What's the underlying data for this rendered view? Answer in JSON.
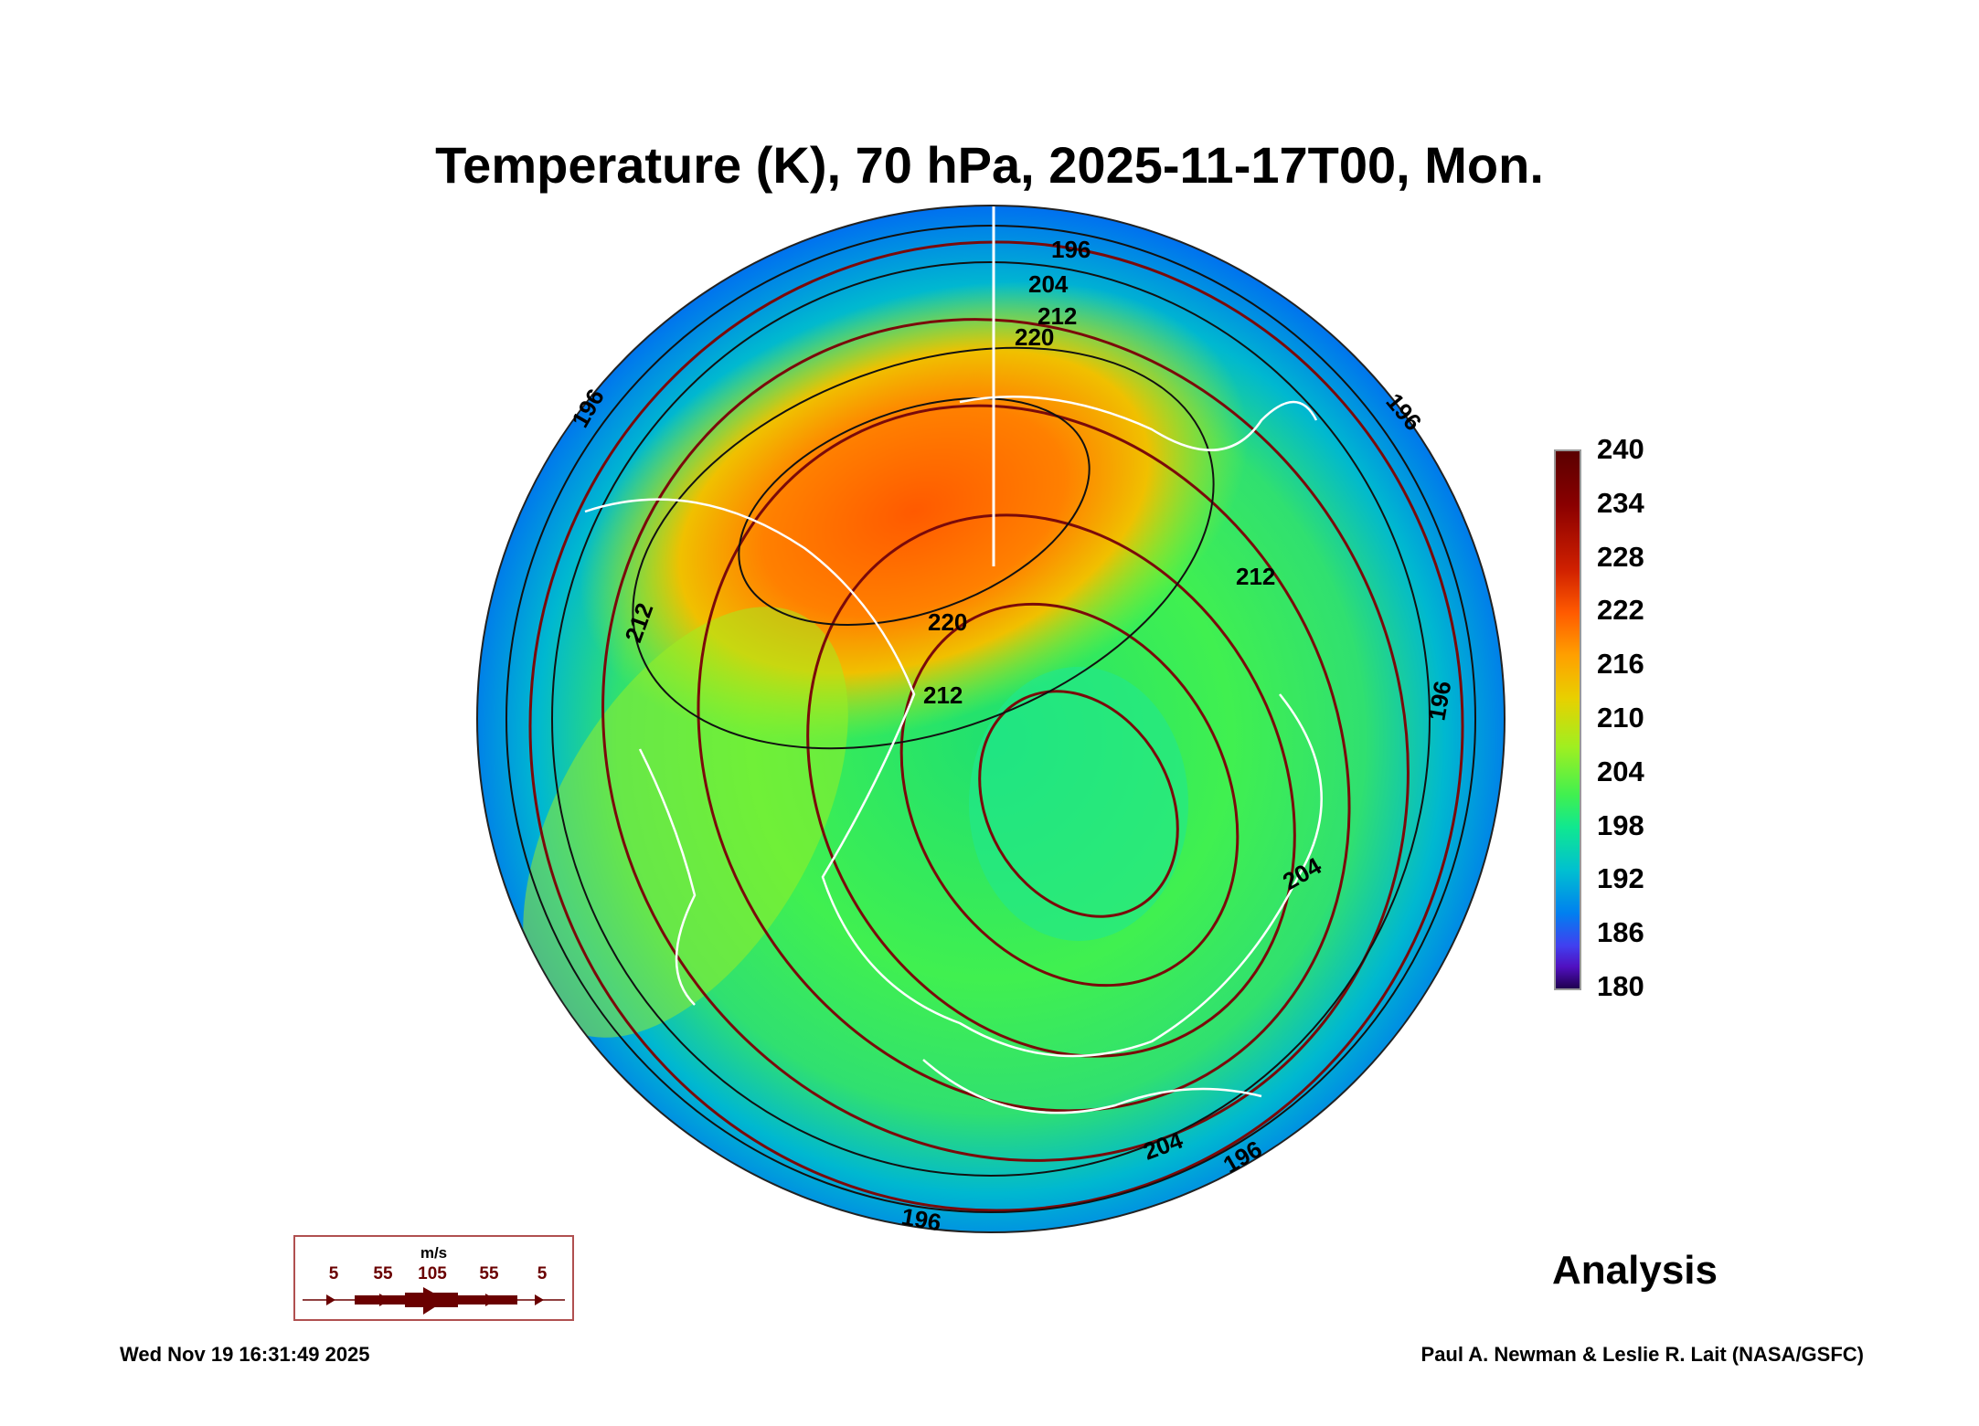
{
  "title": "Temperature (K), 70 hPa, 2025-11-17T00, Mon.",
  "colorbar": {
    "units": "K",
    "ticks": [
      "240",
      "234",
      "228",
      "222",
      "216",
      "210",
      "204",
      "198",
      "192",
      "186",
      "180"
    ]
  },
  "contour_labels": [
    "196",
    "204",
    "212",
    "220",
    "220",
    "212",
    "212",
    "212",
    "196",
    "196",
    "196",
    "204",
    "196",
    "204",
    "196"
  ],
  "wind_key": {
    "unit": "m/s",
    "speeds": [
      "5",
      "55",
      "105",
      "55",
      "5"
    ],
    "color": "#6a0000"
  },
  "analysis_label": "Analysis",
  "timestamp": "Wed Nov 19 16:31:49 2025",
  "credit": "Paul A. Newman & Leslie R. Lait (NASA/GSFC)"
}
